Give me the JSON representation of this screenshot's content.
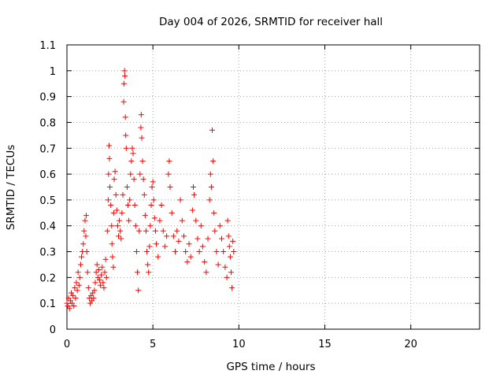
{
  "chart_data": {
    "type": "scatter",
    "title": "Day 004 of 2026, SRMTID for receiver hall",
    "xlabel": "GPS time / hours",
    "ylabel": "SRMTID / TECUs",
    "xlim": [
      0,
      24
    ],
    "ylim": [
      0,
      1.1
    ],
    "x_ticks": [
      0,
      5,
      10,
      15,
      20
    ],
    "x_tick_labels": [
      "0",
      "5",
      "10",
      "15",
      "20"
    ],
    "y_ticks": [
      0,
      0.1,
      0.2,
      0.3,
      0.4,
      0.5,
      0.6,
      0.7,
      0.8,
      0.9,
      1.0,
      1.1
    ],
    "y_tick_labels": [
      "0",
      "0.1",
      "0.2",
      "0.3",
      "0.4",
      "0.5",
      "0.6",
      "0.7",
      "0.8",
      "0.9",
      "1",
      "1.1"
    ],
    "grid": true,
    "marker": "+",
    "color": "#ff0000",
    "series": [
      {
        "name": "SRMTID",
        "points": [
          [
            0.0,
            0.1
          ],
          [
            0.05,
            0.09
          ],
          [
            0.1,
            0.12
          ],
          [
            0.15,
            0.08
          ],
          [
            0.2,
            0.11
          ],
          [
            0.25,
            0.14
          ],
          [
            0.3,
            0.1
          ],
          [
            0.35,
            0.13
          ],
          [
            0.4,
            0.09
          ],
          [
            0.45,
            0.16
          ],
          [
            0.5,
            0.12
          ],
          [
            0.55,
            0.18
          ],
          [
            0.6,
            0.15
          ],
          [
            0.65,
            0.22
          ],
          [
            0.7,
            0.17
          ],
          [
            0.75,
            0.2
          ],
          [
            0.8,
            0.25
          ],
          [
            0.85,
            0.28
          ],
          [
            0.9,
            0.3
          ],
          [
            0.95,
            0.33
          ],
          [
            1.0,
            0.38
          ],
          [
            1.05,
            0.42
          ],
          [
            1.1,
            0.36
          ],
          [
            1.12,
            0.44
          ],
          [
            1.15,
            0.3
          ],
          [
            1.2,
            0.22
          ],
          [
            1.25,
            0.16
          ],
          [
            1.3,
            0.12
          ],
          [
            1.35,
            0.1
          ],
          [
            1.4,
            0.13
          ],
          [
            1.45,
            0.11
          ],
          [
            1.5,
            0.14
          ],
          [
            1.55,
            0.12
          ],
          [
            1.6,
            0.15
          ],
          [
            1.65,
            0.18
          ],
          [
            1.7,
            0.22
          ],
          [
            1.75,
            0.25
          ],
          [
            1.8,
            0.2
          ],
          [
            1.85,
            0.23
          ],
          [
            1.9,
            0.19
          ],
          [
            1.95,
            0.17
          ],
          [
            2.0,
            0.21
          ],
          [
            2.05,
            0.24
          ],
          [
            2.1,
            0.18
          ],
          [
            2.15,
            0.16
          ],
          [
            2.2,
            0.22
          ],
          [
            2.25,
            0.27
          ],
          [
            2.3,
            0.2
          ],
          [
            2.35,
            0.38
          ],
          [
            2.4,
            0.5
          ],
          [
            2.42,
            0.6
          ],
          [
            2.45,
            0.71
          ],
          [
            2.47,
            0.66
          ],
          [
            2.5,
            0.55
          ],
          [
            2.55,
            0.48
          ],
          [
            2.6,
            0.4
          ],
          [
            2.62,
            0.33
          ],
          [
            2.65,
            0.28
          ],
          [
            2.7,
            0.24
          ],
          [
            2.72,
            0.45
          ],
          [
            2.75,
            0.58
          ],
          [
            2.8,
            0.61
          ],
          [
            2.85,
            0.52
          ],
          [
            2.9,
            0.46
          ],
          [
            2.95,
            0.4
          ],
          [
            3.0,
            0.36
          ],
          [
            3.05,
            0.42
          ],
          [
            3.1,
            0.38
          ],
          [
            3.15,
            0.35
          ],
          [
            3.2,
            0.45
          ],
          [
            3.25,
            0.52
          ],
          [
            3.3,
            0.88
          ],
          [
            3.32,
            0.95
          ],
          [
            3.35,
            1.0
          ],
          [
            3.37,
            0.98
          ],
          [
            3.4,
            0.82
          ],
          [
            3.42,
            0.75
          ],
          [
            3.45,
            0.7
          ],
          [
            3.5,
            0.55
          ],
          [
            3.55,
            0.48
          ],
          [
            3.6,
            0.42
          ],
          [
            3.65,
            0.5
          ],
          [
            3.7,
            0.6
          ],
          [
            3.75,
            0.65
          ],
          [
            3.8,
            0.7
          ],
          [
            3.85,
            0.68
          ],
          [
            3.9,
            0.58
          ],
          [
            3.95,
            0.48
          ],
          [
            4.0,
            0.4
          ],
          [
            4.05,
            0.3
          ],
          [
            4.1,
            0.22
          ],
          [
            4.15,
            0.15
          ],
          [
            4.2,
            0.38
          ],
          [
            4.25,
            0.6
          ],
          [
            4.3,
            0.78
          ],
          [
            4.32,
            0.83
          ],
          [
            4.35,
            0.74
          ],
          [
            4.4,
            0.65
          ],
          [
            4.45,
            0.58
          ],
          [
            4.5,
            0.52
          ],
          [
            4.55,
            0.44
          ],
          [
            4.6,
            0.38
          ],
          [
            4.65,
            0.3
          ],
          [
            4.7,
            0.25
          ],
          [
            4.75,
            0.22
          ],
          [
            4.8,
            0.32
          ],
          [
            4.85,
            0.4
          ],
          [
            4.9,
            0.48
          ],
          [
            4.95,
            0.55
          ],
          [
            5.0,
            0.57
          ],
          [
            5.05,
            0.5
          ],
          [
            5.1,
            0.43
          ],
          [
            5.15,
            0.38
          ],
          [
            5.2,
            0.33
          ],
          [
            5.3,
            0.28
          ],
          [
            5.4,
            0.42
          ],
          [
            5.5,
            0.48
          ],
          [
            5.6,
            0.38
          ],
          [
            5.7,
            0.32
          ],
          [
            5.8,
            0.36
          ],
          [
            5.9,
            0.6
          ],
          [
            5.95,
            0.65
          ],
          [
            6.0,
            0.55
          ],
          [
            6.1,
            0.45
          ],
          [
            6.2,
            0.36
          ],
          [
            6.3,
            0.3
          ],
          [
            6.4,
            0.38
          ],
          [
            6.5,
            0.34
          ],
          [
            6.6,
            0.5
          ],
          [
            6.7,
            0.42
          ],
          [
            6.8,
            0.36
          ],
          [
            6.9,
            0.3
          ],
          [
            7.0,
            0.26
          ],
          [
            7.1,
            0.33
          ],
          [
            7.2,
            0.28
          ],
          [
            7.3,
            0.46
          ],
          [
            7.35,
            0.55
          ],
          [
            7.4,
            0.52
          ],
          [
            7.5,
            0.42
          ],
          [
            7.6,
            0.35
          ],
          [
            7.7,
            0.3
          ],
          [
            7.8,
            0.4
          ],
          [
            7.9,
            0.32
          ],
          [
            8.0,
            0.26
          ],
          [
            8.1,
            0.22
          ],
          [
            8.2,
            0.35
          ],
          [
            8.3,
            0.5
          ],
          [
            8.35,
            0.6
          ],
          [
            8.4,
            0.55
          ],
          [
            8.45,
            0.77
          ],
          [
            8.5,
            0.65
          ],
          [
            8.55,
            0.45
          ],
          [
            8.6,
            0.38
          ],
          [
            8.7,
            0.3
          ],
          [
            8.8,
            0.25
          ],
          [
            8.9,
            0.4
          ],
          [
            9.0,
            0.35
          ],
          [
            9.1,
            0.3
          ],
          [
            9.2,
            0.24
          ],
          [
            9.3,
            0.2
          ],
          [
            9.35,
            0.42
          ],
          [
            9.4,
            0.36
          ],
          [
            9.45,
            0.32
          ],
          [
            9.5,
            0.28
          ],
          [
            9.55,
            0.22
          ],
          [
            9.6,
            0.16
          ],
          [
            9.65,
            0.34
          ],
          [
            9.7,
            0.3
          ]
        ]
      }
    ]
  }
}
